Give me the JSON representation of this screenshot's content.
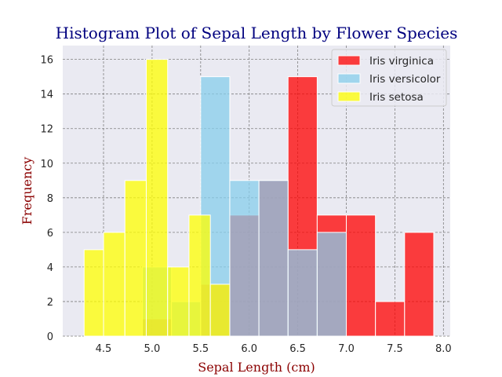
{
  "chart_data": {
    "type": "bar",
    "title": "Histogram Plot of Sepal Length by Flower Species",
    "xlabel": "Sepal Length (cm)",
    "ylabel": "Frequency",
    "xlim": [
      4.08,
      8.07
    ],
    "ylim": [
      0,
      16.8
    ],
    "xticks": [
      4.5,
      5.0,
      5.5,
      6.0,
      6.5,
      7.0,
      7.5,
      8.0
    ],
    "xtick_labels": [
      "4.5",
      "5.0",
      "5.5",
      "6.0",
      "6.5",
      "7.0",
      "7.5",
      "8.0"
    ],
    "yticks": [
      0,
      2,
      4,
      6,
      8,
      10,
      12,
      14,
      16
    ],
    "ytick_labels": [
      "0",
      "2",
      "4",
      "6",
      "8",
      "10",
      "12",
      "14",
      "16"
    ],
    "grid": true,
    "legend_position": "top-right",
    "series": [
      {
        "name": "Iris virginica",
        "color": "#ff0000",
        "opacity": 0.75,
        "bins": [
          {
            "x0": 4.9,
            "x1": 5.2,
            "count": 1
          },
          {
            "x0": 5.2,
            "x1": 5.5,
            "count": 0
          },
          {
            "x0": 5.5,
            "x1": 5.8,
            "count": 3
          },
          {
            "x0": 5.8,
            "x1": 6.1,
            "count": 7
          },
          {
            "x0": 6.1,
            "x1": 6.4,
            "count": 9
          },
          {
            "x0": 6.4,
            "x1": 6.7,
            "count": 15
          },
          {
            "x0": 6.7,
            "x1": 7.0,
            "count": 7
          },
          {
            "x0": 7.0,
            "x1": 7.3,
            "count": 7
          },
          {
            "x0": 7.3,
            "x1": 7.6,
            "count": 2
          },
          {
            "x0": 7.6,
            "x1": 7.9,
            "count": 6
          }
        ]
      },
      {
        "name": "Iris versicolor",
        "color": "#87ceeb",
        "opacity": 0.75,
        "bins": [
          {
            "x0": 4.9,
            "x1": 5.2,
            "count": 4
          },
          {
            "x0": 5.2,
            "x1": 5.5,
            "count": 2
          },
          {
            "x0": 5.5,
            "x1": 5.8,
            "count": 15
          },
          {
            "x0": 5.8,
            "x1": 6.1,
            "count": 9
          },
          {
            "x0": 6.1,
            "x1": 6.4,
            "count": 9
          },
          {
            "x0": 6.4,
            "x1": 6.7,
            "count": 5
          },
          {
            "x0": 6.7,
            "x1": 7.0,
            "count": 6
          }
        ]
      },
      {
        "name": "Iris setosa",
        "color": "#ffff00",
        "opacity": 0.75,
        "bins": [
          {
            "x0": 4.3,
            "x1": 4.5,
            "count": 5
          },
          {
            "x0": 4.5,
            "x1": 4.72,
            "count": 6
          },
          {
            "x0": 4.72,
            "x1": 4.94,
            "count": 9
          },
          {
            "x0": 4.94,
            "x1": 5.16,
            "count": 16
          },
          {
            "x0": 5.16,
            "x1": 5.38,
            "count": 4
          },
          {
            "x0": 5.38,
            "x1": 5.6,
            "count": 7
          },
          {
            "x0": 5.6,
            "x1": 5.8,
            "count": 3
          }
        ]
      }
    ]
  }
}
